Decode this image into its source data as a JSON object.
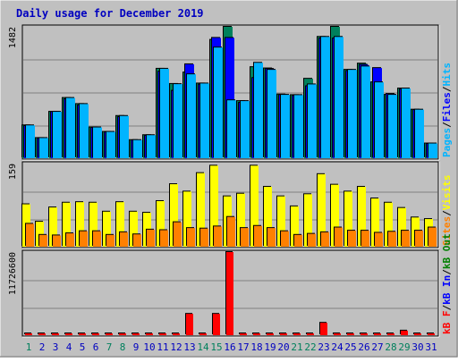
{
  "title": "Daily usage for December 2019",
  "colors": {
    "background": "#c0c0c0",
    "plot": "#c0c0c0",
    "title": "#0000c0",
    "hits": "#00b4ff",
    "files": "#0000ff",
    "pages": "#00805c",
    "visits": "#ffff00",
    "sites": "#ff8000",
    "kbin": "#ff0000",
    "kbout": "#ff0000",
    "weekend_label": "#00805c",
    "weekday_label": "#0000c0"
  },
  "legends": {
    "top": [
      {
        "text": "Hits",
        "color": "#00b4ff"
      },
      {
        "text": "/",
        "color": "#000000"
      },
      {
        "text": "Files",
        "color": "#0000ff"
      },
      {
        "text": "/",
        "color": "#000000"
      },
      {
        "text": "Pages",
        "color": "#00b4ff"
      }
    ],
    "middle": [
      {
        "text": "Visits",
        "color": "#ffff00"
      },
      {
        "text": "/",
        "color": "#000000"
      },
      {
        "text": "Sites",
        "color": "#ff8000"
      }
    ],
    "bottom": [
      {
        "text": "kB Out",
        "color": "#008000"
      },
      {
        "text": "/",
        "color": "#000000"
      },
      {
        "text": "kB In",
        "color": "#0000ff"
      },
      {
        "text": "/",
        "color": "#000000"
      },
      {
        "text": "kB F",
        "color": "#ff0000"
      }
    ]
  },
  "chart_data": [
    {
      "type": "bar",
      "panel": "hits-files-pages",
      "ymax_label": "1482",
      "ylim": [
        0,
        1482
      ],
      "categories": [
        "1",
        "2",
        "3",
        "4",
        "5",
        "6",
        "7",
        "8",
        "9",
        "10",
        "11",
        "12",
        "13",
        "14",
        "15",
        "16",
        "17",
        "18",
        "19",
        "20",
        "21",
        "22",
        "23",
        "24",
        "25",
        "26",
        "27",
        "28",
        "29",
        "30",
        "31"
      ],
      "series": [
        {
          "name": "Hits",
          "values": [
            378,
            236,
            530,
            685,
            617,
            355,
            305,
            483,
            213,
            268,
            1012,
            840,
            950,
            847,
            1250,
            659,
            650,
            1079,
            1000,
            720,
            717,
            837,
            1369,
            1369,
            1000,
            1038,
            860,
            720,
            791,
            554,
            175
          ]
        },
        {
          "name": "Files",
          "values": [
            370,
            232,
            528,
            670,
            602,
            350,
            300,
            470,
            210,
            262,
            980,
            765,
            1062,
            835,
            1358,
            1358,
            630,
            908,
            1010,
            718,
            708,
            816,
            1351,
            1351,
            987,
            1056,
            1020,
            730,
            783,
            549,
            170
          ]
        },
        {
          "name": "Pages",
          "values": [
            378,
            236,
            530,
            685,
            617,
            355,
            305,
            483,
            213,
            268,
            1012,
            842,
            970,
            847,
            1336,
            1482,
            650,
            1030,
            1016,
            724,
            717,
            900,
            1369,
            1482,
            1000,
            1070,
            860,
            720,
            791,
            554,
            175
          ]
        }
      ]
    },
    {
      "type": "bar",
      "panel": "visits-sites",
      "ymax_label": "159",
      "ylim": [
        0,
        159
      ],
      "categories": [
        "1",
        "2",
        "3",
        "4",
        "5",
        "6",
        "7",
        "8",
        "9",
        "10",
        "11",
        "12",
        "13",
        "14",
        "15",
        "16",
        "17",
        "18",
        "19",
        "20",
        "21",
        "22",
        "23",
        "24",
        "25",
        "26",
        "27",
        "28",
        "29",
        "30",
        "31"
      ],
      "series": [
        {
          "name": "Visits",
          "values": [
            82,
            49,
            76,
            85,
            86,
            85,
            68,
            86,
            68,
            66,
            88,
            120,
            106,
            141,
            155,
            97,
            102,
            155,
            115,
            97,
            78,
            101,
            139,
            119,
            106,
            115,
            93,
            85,
            75,
            57,
            54
          ]
        },
        {
          "name": "Sites",
          "values": [
            45,
            24,
            23,
            27,
            31,
            31,
            24,
            29,
            25,
            34,
            33,
            48,
            37,
            36,
            40,
            58,
            37,
            41,
            37,
            31,
            24,
            26,
            29,
            38,
            32,
            32,
            28,
            30,
            32,
            32,
            38
          ]
        }
      ]
    },
    {
      "type": "bar",
      "panel": "kilobytes",
      "ymax_label": "11726600",
      "ylim": [
        0,
        11726600
      ],
      "categories": [
        "1",
        "2",
        "3",
        "4",
        "5",
        "6",
        "7",
        "8",
        "9",
        "10",
        "11",
        "12",
        "13",
        "14",
        "15",
        "16",
        "17",
        "18",
        "19",
        "20",
        "21",
        "22",
        "23",
        "24",
        "25",
        "26",
        "27",
        "28",
        "29",
        "30",
        "31"
      ],
      "series": [
        {
          "name": "kB F",
          "values": [
            130000,
            130000,
            130000,
            130000,
            130000,
            130000,
            130000,
            130000,
            130000,
            130000,
            130000,
            130000,
            3100000,
            130000,
            3100000,
            11726600,
            130000,
            130000,
            130000,
            130000,
            130000,
            130000,
            1850000,
            380000,
            130000,
            130000,
            130000,
            130000,
            760000,
            130000,
            130000
          ]
        }
      ]
    }
  ],
  "x_labels": [
    {
      "text": "1",
      "weekend": true
    },
    {
      "text": "2",
      "weekend": false
    },
    {
      "text": "3",
      "weekend": false
    },
    {
      "text": "4",
      "weekend": false
    },
    {
      "text": "5",
      "weekend": false
    },
    {
      "text": "6",
      "weekend": false
    },
    {
      "text": "7",
      "weekend": true
    },
    {
      "text": "8",
      "weekend": true
    },
    {
      "text": "9",
      "weekend": false
    },
    {
      "text": "10",
      "weekend": false
    },
    {
      "text": "11",
      "weekend": false
    },
    {
      "text": "12",
      "weekend": false
    },
    {
      "text": "13",
      "weekend": false
    },
    {
      "text": "14",
      "weekend": true
    },
    {
      "text": "15",
      "weekend": true
    },
    {
      "text": "16",
      "weekend": false
    },
    {
      "text": "17",
      "weekend": false
    },
    {
      "text": "18",
      "weekend": false
    },
    {
      "text": "19",
      "weekend": false
    },
    {
      "text": "20",
      "weekend": false
    },
    {
      "text": "21",
      "weekend": true
    },
    {
      "text": "22",
      "weekend": true
    },
    {
      "text": "23",
      "weekend": false
    },
    {
      "text": "24",
      "weekend": false
    },
    {
      "text": "25",
      "weekend": false
    },
    {
      "text": "26",
      "weekend": false
    },
    {
      "text": "27",
      "weekend": false
    },
    {
      "text": "28",
      "weekend": true
    },
    {
      "text": "29",
      "weekend": true
    },
    {
      "text": "30",
      "weekend": false
    },
    {
      "text": "31",
      "weekend": false
    }
  ]
}
